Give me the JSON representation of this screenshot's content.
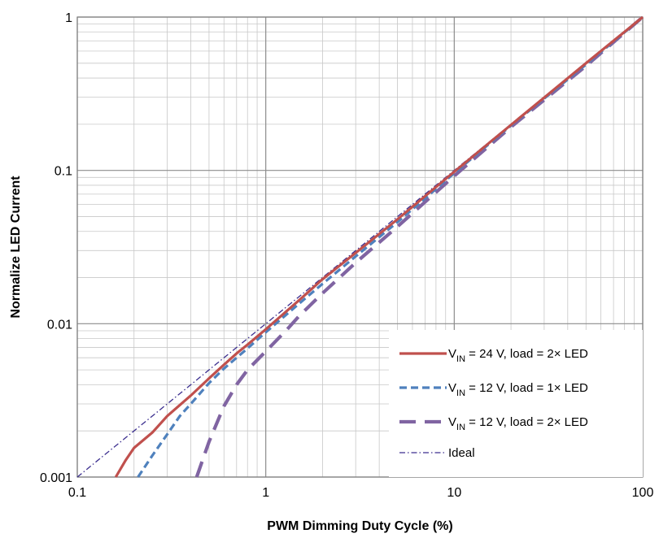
{
  "chart_data": {
    "type": "line",
    "title": "",
    "xlabel": "PWM Dimming Duty Cycle (%)",
    "ylabel": "Normalize LED Current",
    "xscale": "log",
    "yscale": "log",
    "xlim": [
      0.1,
      100
    ],
    "ylim": [
      0.001,
      1
    ],
    "grid": true,
    "legend_position": "bottom-right",
    "x_ticks": [
      "0.1",
      "1",
      "10",
      "100"
    ],
    "y_ticks": [
      "0.001",
      "0.01",
      "0.1",
      "1"
    ],
    "series": [
      {
        "name_parts": {
          "main": "V",
          "sub": "IN",
          "rest": " = 24 V, load = 2× LED"
        },
        "color": "#c0504d",
        "dash": "solid",
        "x": [
          0.16,
          0.18,
          0.2,
          0.25,
          0.3,
          0.4,
          0.5,
          0.6,
          0.7,
          0.8,
          1.0,
          1.5,
          2,
          3,
          5,
          10,
          20,
          50,
          100
        ],
        "y": [
          0.001,
          0.00128,
          0.00155,
          0.00195,
          0.0025,
          0.0034,
          0.0044,
          0.0054,
          0.0064,
          0.0073,
          0.0092,
          0.0142,
          0.0195,
          0.029,
          0.048,
          0.098,
          0.198,
          0.5,
          1.0
        ]
      },
      {
        "name_parts": {
          "main": "V",
          "sub": "IN",
          "rest": " = 12 V, load = 1× LED"
        },
        "color": "#4f81bd",
        "dash": "short-dash",
        "x": [
          0.21,
          0.25,
          0.3,
          0.35,
          0.4,
          0.5,
          0.6,
          0.7,
          0.8,
          1.0,
          1.5,
          2,
          3,
          5,
          10,
          20,
          50,
          100
        ],
        "y": [
          0.001,
          0.00138,
          0.0019,
          0.0025,
          0.003,
          0.0041,
          0.0051,
          0.006,
          0.0069,
          0.0088,
          0.0135,
          0.0182,
          0.0275,
          0.046,
          0.096,
          0.196,
          0.49,
          1.0
        ]
      },
      {
        "name_parts": {
          "main": "V",
          "sub": "IN",
          "rest": " = 12 V, load = 2× LED"
        },
        "color": "#8064a2",
        "dash": "long-dash",
        "x": [
          0.43,
          0.5,
          0.6,
          0.7,
          0.8,
          1.0,
          1.3,
          1.5,
          2,
          3,
          5,
          10,
          20,
          50,
          100
        ],
        "y": [
          0.001,
          0.0017,
          0.0029,
          0.004,
          0.005,
          0.0066,
          0.0092,
          0.0112,
          0.0158,
          0.025,
          0.043,
          0.092,
          0.192,
          0.48,
          1.0
        ]
      },
      {
        "name": "Ideal",
        "color": "#3c2f8f",
        "dash": "dash-dot",
        "x": [
          0.1,
          100
        ],
        "y": [
          0.001,
          1.0
        ]
      }
    ]
  }
}
